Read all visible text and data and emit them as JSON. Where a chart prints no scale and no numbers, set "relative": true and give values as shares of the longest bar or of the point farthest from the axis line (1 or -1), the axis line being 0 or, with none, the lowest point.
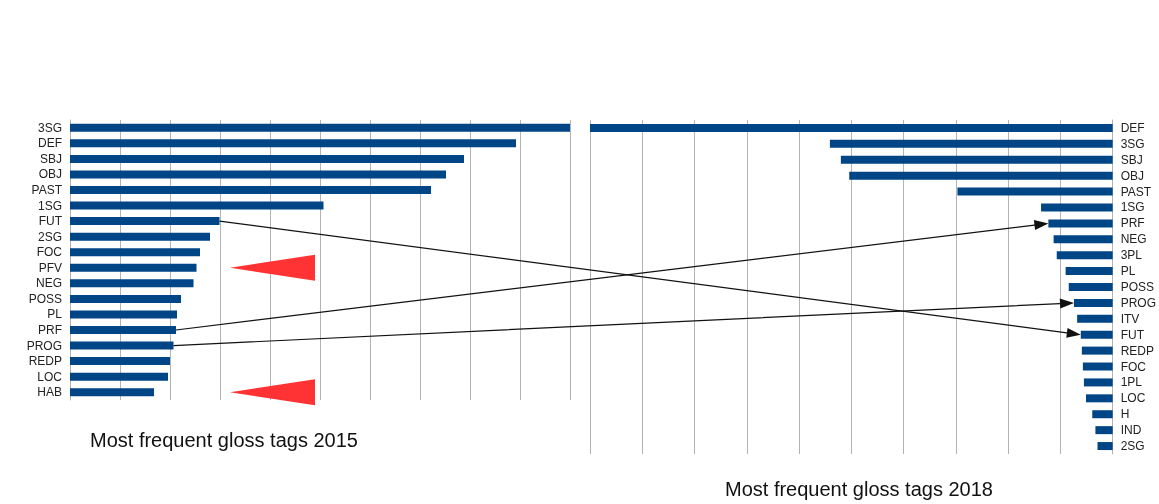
{
  "chart_data": [
    {
      "type": "bar",
      "orientation": "horizontal",
      "relative": true,
      "grid": true,
      "title": "Most frequent gloss tags 2015",
      "color": "#004586",
      "categories": [
        "3SG",
        "DEF",
        "SBJ",
        "OBJ",
        "PAST",
        "1SG",
        "FUT",
        "2SG",
        "FOC",
        "PFV",
        "NEG",
        "POSS",
        "PL",
        "PRF",
        "PROG",
        "REDP",
        "LOC",
        "HAB"
      ],
      "values": [
        1,
        0.892,
        0.788,
        0.752,
        0.722,
        0.507,
        0.299,
        0.28,
        0.26,
        0.253,
        0.247,
        0.222,
        0.214,
        0.212,
        0.207,
        0.2,
        0.196,
        0.168
      ]
    },
    {
      "type": "bar",
      "orientation": "horizontal",
      "relative": true,
      "grid": true,
      "title": "Most frequent gloss tags 2018",
      "color": "#004586",
      "categories": [
        "DEF",
        "3SG",
        "SBJ",
        "OBJ",
        "PAST",
        "1SG",
        "PRF",
        "NEG",
        "3PL",
        "PL",
        "POSS",
        "PROG",
        "ITV",
        "FUT",
        "REDP",
        "FOC",
        "1PL",
        "LOC",
        "H",
        "IND",
        "2SG"
      ],
      "values": [
        1,
        0.541,
        0.52,
        0.504,
        0.297,
        0.137,
        0.123,
        0.113,
        0.107,
        0.09,
        0.084,
        0.074,
        0.068,
        0.061,
        0.059,
        0.057,
        0.055,
        0.051,
        0.039,
        0.033,
        0.029
      ]
    }
  ]
}
